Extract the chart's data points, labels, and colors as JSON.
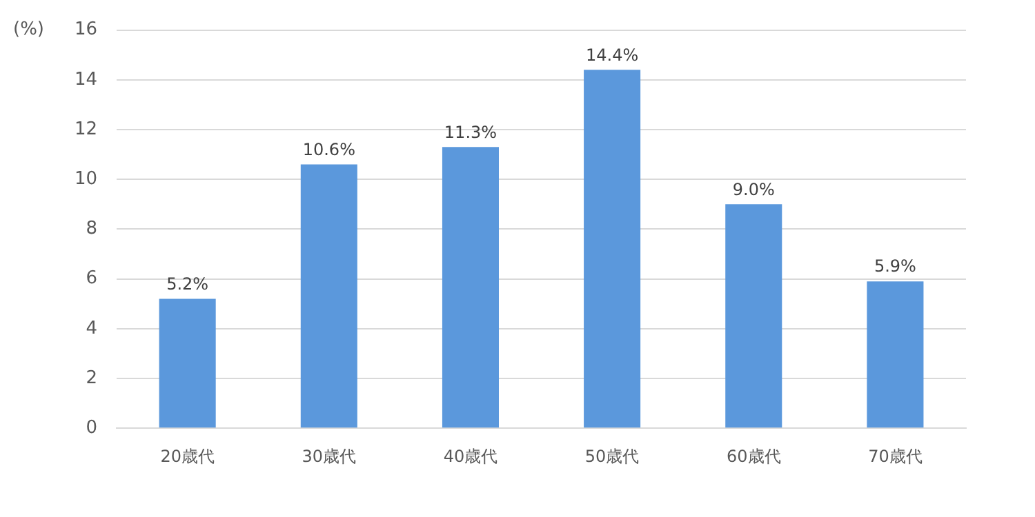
{
  "chart_data": {
    "type": "bar",
    "ylabel": "(%)",
    "categories": [
      "20歳代",
      "30歳代",
      "40歳代",
      "50歳代",
      "60歳代",
      "70歳代"
    ],
    "values": [
      5.2,
      10.6,
      11.3,
      14.4,
      9.0,
      5.9
    ],
    "value_labels": [
      "5.2%",
      "10.6%",
      "11.3%",
      "14.4%",
      "9.0%",
      "5.9%"
    ],
    "color": "#5b98dc",
    "ylim": [
      0,
      16
    ],
    "yticks": [
      0,
      2,
      4,
      6,
      8,
      10,
      12,
      14,
      16
    ],
    "grid": "y",
    "legend": false
  }
}
